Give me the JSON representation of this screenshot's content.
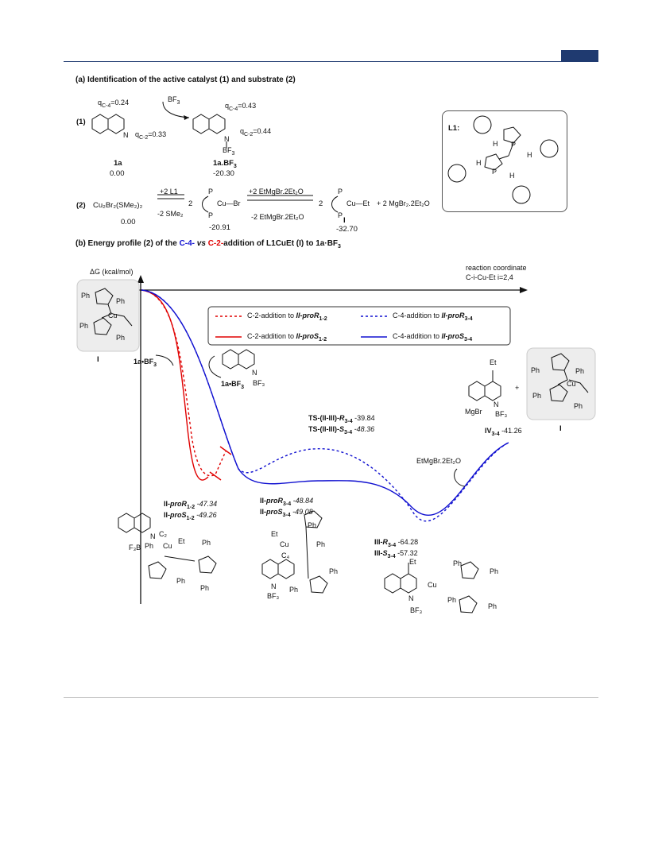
{
  "section_a": {
    "title": "(a) Identification of the active catalyst (1) and substrate (2)",
    "row1_label": "(1)",
    "q_c4_left": "q",
    "q_c4_left_sub": "C-4",
    "q_c4_left_val": "=0.24",
    "q_c2_left": "q",
    "q_c2_left_sub": "C-2",
    "q_c2_left_val": "=0.33",
    "bf3": "BF",
    "bf3_sub": "3",
    "q_c4_right": "q",
    "q_c4_right_sub": "C-4",
    "q_c4_right_val": "=0.43",
    "q_c2_right": "q",
    "q_c2_right_sub": "C-2",
    "q_c2_right_val": "=0.44",
    "n_label": "N",
    "cpd_1a": "1a",
    "cpd_1a_energy": "0.00",
    "cpd_1abf3": "1a.BF",
    "cpd_1abf3_sub": "3",
    "cpd_1abf3_energy": "-20.30",
    "row2_label": "(2)",
    "cu2br2": "Cu₂Br₂(SMe₂)₂",
    "cu2br2_energy": "0.00",
    "plus_l1": "+2 L1",
    "minus_sme2": "-2 SMe₂",
    "two_a": "2",
    "cubr": "Cu—Br",
    "cubr_energy": "-20.91",
    "plus_grignard": "+2 EtMgBr.2Et₂O",
    "minus_grignard": "-2 EtMgBr.2Et₂O",
    "two_b": "2",
    "cuet": "Cu—Et",
    "cuet_label": "I",
    "cuet_energy": "-32.70",
    "mgbr2": "+ 2 MgBr₂.2Et₂O",
    "l1_label": "L1:",
    "p": "P",
    "h": "H"
  },
  "section_b": {
    "title_pre": "(b) Energy profile (2) of the ",
    "title_c4": "C-4-",
    "title_vs": " vs ",
    "title_c2": "C-2-",
    "title_post": "addition of L1CuEt (I) to 1a·BF",
    "title_sub": "3"
  },
  "chart_data": {
    "type": "line",
    "ylabel": "ΔG (kcal/mol)",
    "xlabel": "reaction coordinate",
    "xlabel2": "C-i-Cu-Et i=2,4",
    "series": [
      {
        "name": "C-2-addition to II-proR1-2",
        "color": "#e00000",
        "style": "dashed",
        "points": [
          [
            "I",
            0.0
          ],
          [
            "II-proR1-2",
            -47.34
          ]
        ]
      },
      {
        "name": "C-2-addition to II-proS1-2",
        "color": "#e00000",
        "style": "solid",
        "points": [
          [
            "I",
            0.0
          ],
          [
            "II-proS1-2",
            -49.26
          ]
        ]
      },
      {
        "name": "C-4-addition to II-proR3-4",
        "color": "#1010d0",
        "style": "dashed",
        "points": [
          [
            "I",
            0.0
          ],
          [
            "II-proR3-4",
            -48.84
          ],
          [
            "TS-(II-III)-R3-4",
            -39.84
          ],
          [
            "III-R3-4",
            -64.28
          ],
          [
            "IV3-4",
            -41.26
          ]
        ]
      },
      {
        "name": "C-4-addition to II-proS3-4",
        "color": "#1010d0",
        "style": "solid",
        "points": [
          [
            "I",
            0.0
          ],
          [
            "II-proS3-4",
            -49.08
          ],
          [
            "TS-(II-III)-S3-4",
            -48.36
          ],
          [
            "III-S3-4",
            -57.32
          ],
          [
            "IV3-4",
            -41.26
          ]
        ]
      }
    ]
  },
  "legend": {
    "l1": "C-2-addition to ",
    "l1b": "II-proR",
    "l1s": "1-2",
    "l2": "C-2-addition to ",
    "l2b": "II-proS",
    "l2s": "1-2",
    "l3": "C-4-addition to ",
    "l3b": "II-proR",
    "l3s": "3-4",
    "l4": "C-4-addition to ",
    "l4b": "II-proS",
    "l4s": "3-4"
  },
  "labels": {
    "start_I": "I",
    "ph": "Ph",
    "cu": "Cu",
    "et": "Et",
    "a1bf3_left": "1a•BF",
    "a1bf3_left_sub": "3",
    "a1bf3_mid": "1a•BF",
    "a1bf3_mid_sub": "3",
    "ts_r": "TS-(II-III)-",
    "ts_r_b": "R",
    "ts_r_s": "3-4",
    "ts_r_v": " -39.84",
    "ts_s": "TS-(II-III)-",
    "ts_s_b": "S",
    "ts_s_s": "3-4",
    "ts_s_v": " -48.36",
    "iv": "IV",
    "iv_s": "3-4",
    "iv_v": " -41.26",
    "end_I": "I",
    "grignard_step": "EtMgBr.2Et₂O",
    "mgbr": "MgBr",
    "plus": "+",
    "ii_r12": "II-",
    "ii_r12_b": "proR",
    "ii_r12_s": "1-2",
    "ii_r12_v": " -47.34",
    "ii_s12": "II-",
    "ii_s12_b": "proS",
    "ii_s12_s": "1-2",
    "ii_s12_v": " -49.26",
    "ii_r34": "II-",
    "ii_r34_b": "proR",
    "ii_r34_s": "3-4",
    "ii_r34_v": " -48.84",
    "ii_s34": "II-",
    "ii_s34_b": "proS",
    "ii_s34_s": "3-4",
    "ii_s34_v": " -49.08",
    "iii_r": "III-",
    "iii_r_b": "R",
    "iii_r_s": "3-4",
    "iii_r_v": " -64.28",
    "iii_s": "III-",
    "iii_s_b": "S",
    "iii_s_s": "3-4",
    "iii_s_v": " -57.32",
    "c2": "C₂",
    "c4": "C₄",
    "f3b": "F₃B",
    "bf3n": "BF₃",
    "n": "N"
  }
}
